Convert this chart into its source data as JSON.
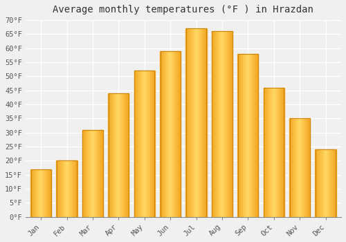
{
  "title": "Average monthly temperatures (°F ) in Hrazdan",
  "months": [
    "Jan",
    "Feb",
    "Mar",
    "Apr",
    "May",
    "Jun",
    "Jul",
    "Aug",
    "Sep",
    "Oct",
    "Nov",
    "Dec"
  ],
  "values": [
    17,
    20,
    31,
    44,
    52,
    59,
    67,
    66,
    58,
    46,
    35,
    24
  ],
  "bar_color_left": "#F5A623",
  "bar_color_center": "#FFD966",
  "bar_color_right": "#F5A623",
  "bar_edge_color": "#C8860A",
  "ylim": [
    0,
    70
  ],
  "yticks": [
    0,
    5,
    10,
    15,
    20,
    25,
    30,
    35,
    40,
    45,
    50,
    55,
    60,
    65,
    70
  ],
  "ylabel_suffix": "°F",
  "background_color": "#f0f0f0",
  "plot_bg_color": "#f0f0f0",
  "grid_color": "#ffffff",
  "title_fontsize": 10,
  "tick_fontsize": 7.5,
  "font_family": "monospace"
}
